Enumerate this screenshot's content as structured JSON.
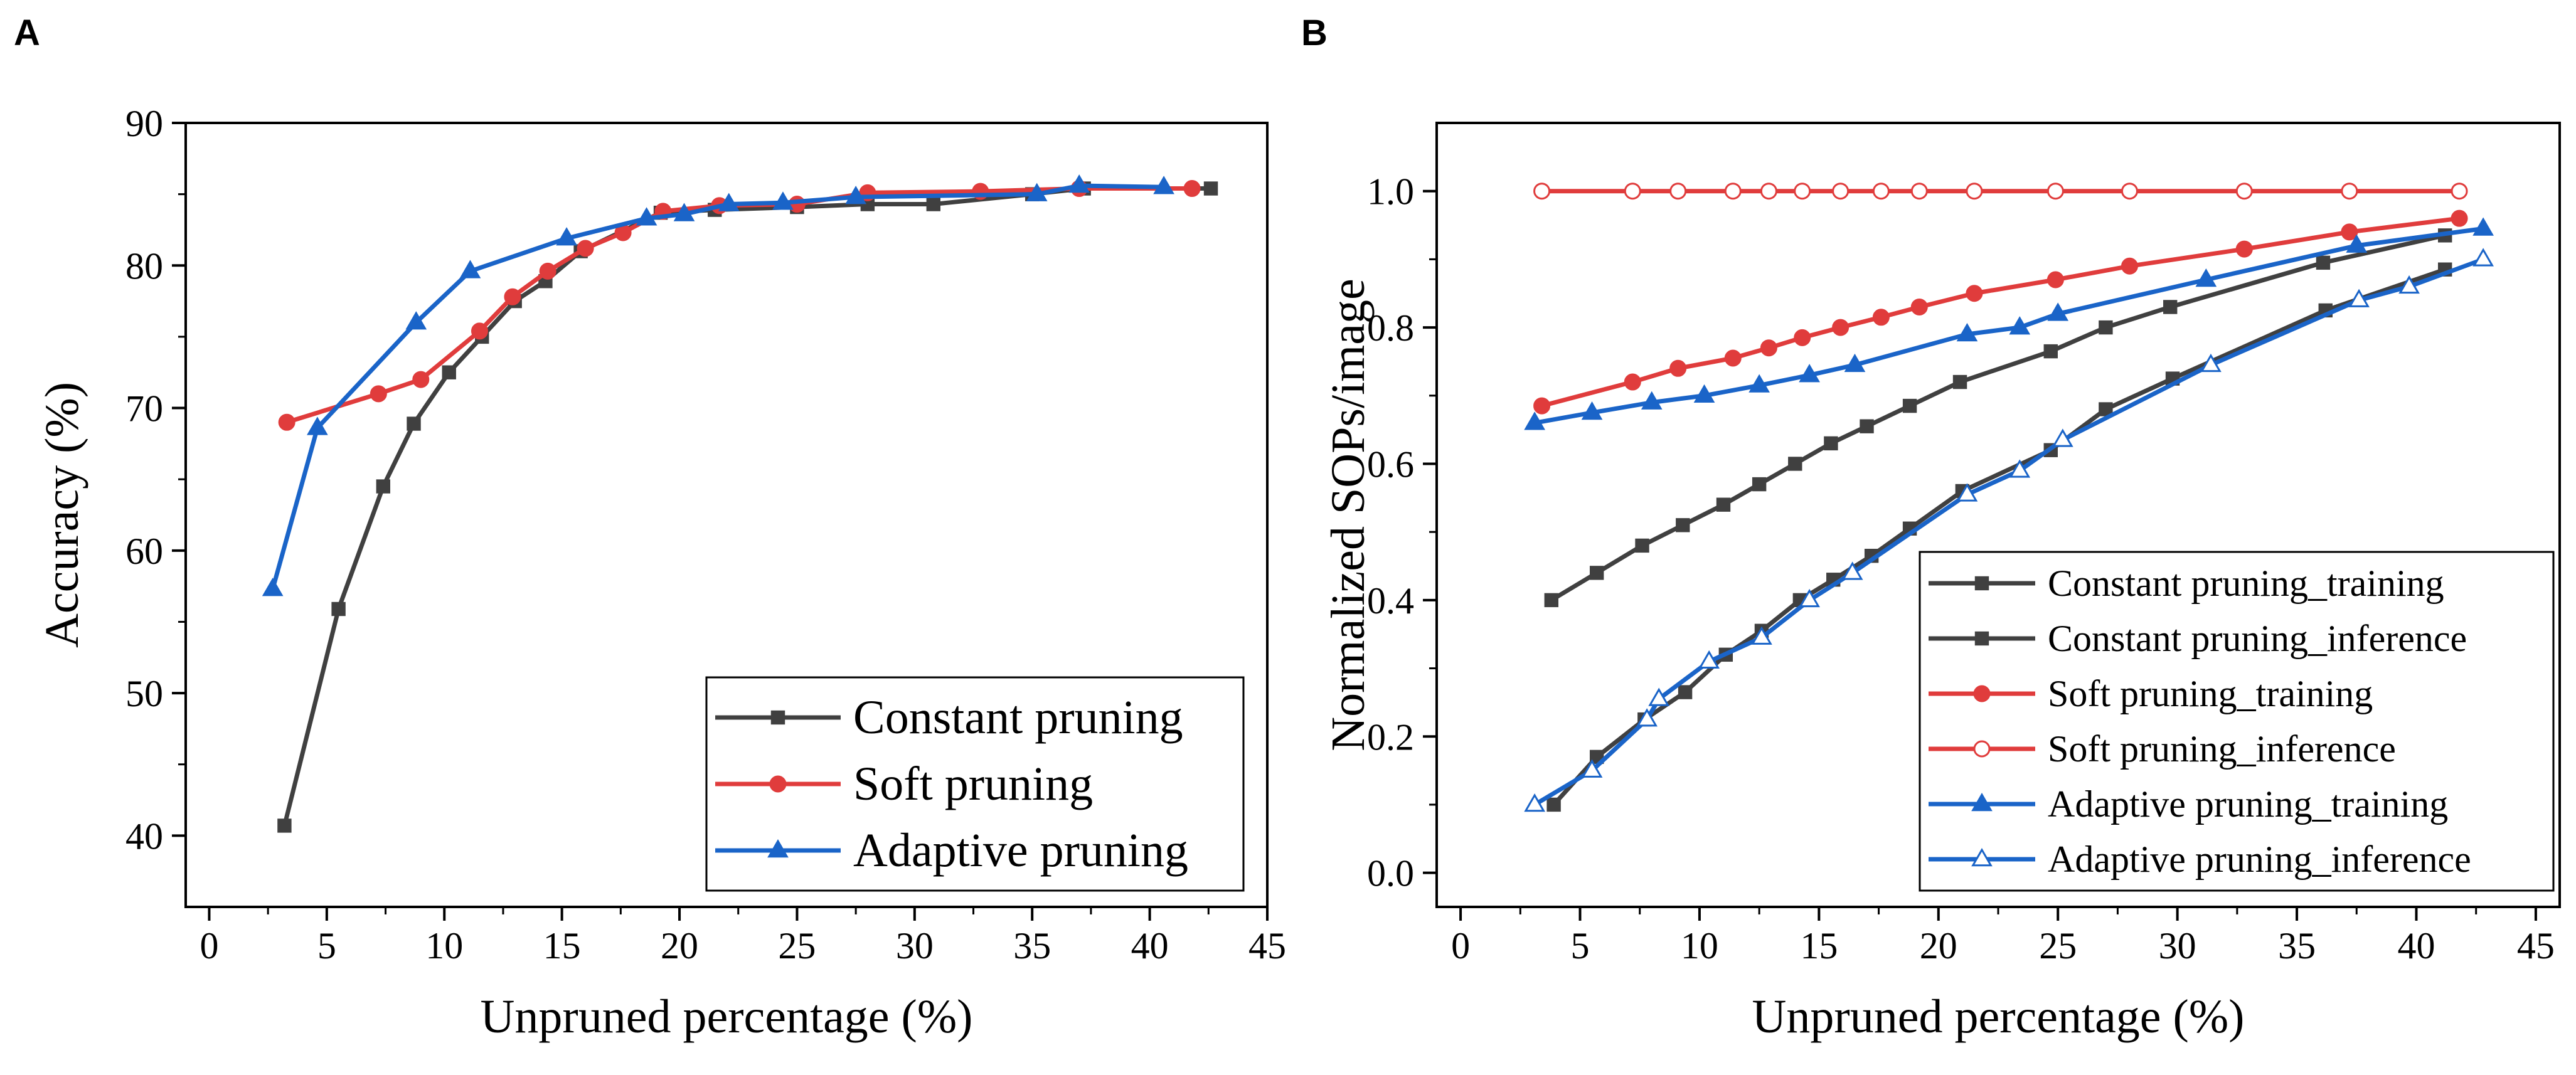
{
  "chart_data": [
    {
      "panel": "A",
      "type": "line",
      "title": "",
      "xlabel": "Unpruned percentage (%)",
      "ylabel": "Accuracy (%)",
      "xlim": [
        -1,
        45
      ],
      "ylim": [
        35,
        90
      ],
      "xticks": [
        0,
        5,
        10,
        15,
        20,
        25,
        30,
        35,
        40,
        45
      ],
      "yticks": [
        40,
        50,
        60,
        70,
        80,
        90
      ],
      "legend_position": "bottom-right",
      "grid": false,
      "series": [
        {
          "name": "Constant pruning",
          "color": "#404040",
          "marker": "square",
          "x": [
            3.2,
            5.5,
            7.4,
            8.7,
            10.2,
            11.6,
            13.0,
            14.3,
            15.8,
            19.2,
            21.5,
            25.0,
            28.0,
            30.8,
            35.0,
            37.2,
            42.6
          ],
          "y": [
            40.7,
            55.9,
            64.5,
            68.9,
            72.5,
            75.0,
            77.5,
            78.9,
            81.0,
            83.7,
            83.9,
            84.1,
            84.3,
            84.3,
            85.0,
            85.4,
            85.4
          ]
        },
        {
          "name": "Soft pruning",
          "color": "#e03c3c",
          "marker": "circle",
          "x": [
            3.3,
            7.2,
            9.0,
            11.5,
            12.9,
            14.4,
            16.0,
            17.6,
            19.3,
            21.7,
            25.0,
            28.0,
            32.8,
            37.0,
            41.8
          ],
          "y": [
            69.0,
            71.0,
            72.0,
            75.4,
            77.8,
            79.6,
            81.2,
            82.3,
            83.8,
            84.2,
            84.3,
            85.1,
            85.2,
            85.4,
            85.4
          ]
        },
        {
          "name": "Adaptive pruning",
          "color": "#1a64c8",
          "marker": "triangle",
          "x": [
            2.7,
            4.6,
            8.8,
            11.1,
            15.2,
            18.6,
            20.2,
            22.1,
            24.4,
            27.5,
            35.2,
            37.0,
            40.6
          ],
          "y": [
            57.3,
            68.6,
            76.0,
            79.6,
            81.9,
            83.3,
            83.6,
            84.3,
            84.4,
            84.8,
            85.0,
            85.6,
            85.5
          ]
        }
      ]
    },
    {
      "panel": "B",
      "type": "line",
      "title": "",
      "xlabel": "Unpruned percentage (%)",
      "ylabel": "Normalized SOPs/image",
      "xlim": [
        -1,
        46
      ],
      "ylim": [
        -0.05,
        1.1
      ],
      "xticks": [
        0,
        5,
        10,
        15,
        20,
        25,
        30,
        35,
        40,
        45
      ],
      "yticks": [
        0.0,
        0.2,
        0.4,
        0.6,
        0.8,
        1.0
      ],
      "ytick_labels": [
        "0.0",
        "0.2",
        "0.4",
        "0.6",
        "0.8",
        "1.0"
      ],
      "legend_position": "bottom-right",
      "grid": false,
      "series": [
        {
          "name": "Constant pruning_training",
          "color": "#404040",
          "marker": "square",
          "x": [
            3.8,
            5.7,
            7.6,
            9.3,
            11.0,
            12.5,
            14.0,
            15.5,
            17.0,
            18.8,
            20.9,
            24.7,
            27.0,
            29.7,
            36.1,
            41.2
          ],
          "y": [
            0.4,
            0.44,
            0.48,
            0.51,
            0.54,
            0.57,
            0.6,
            0.63,
            0.655,
            0.685,
            0.72,
            0.765,
            0.8,
            0.83,
            0.895,
            0.935
          ]
        },
        {
          "name": "Constant pruning_inference",
          "color": "#404040",
          "marker": "square",
          "x": [
            3.9,
            5.7,
            7.7,
            9.4,
            11.1,
            12.6,
            14.2,
            15.6,
            17.2,
            18.8,
            21.0,
            24.7,
            27.0,
            29.8,
            36.2,
            41.2
          ],
          "y": [
            0.1,
            0.17,
            0.225,
            0.265,
            0.32,
            0.355,
            0.4,
            0.43,
            0.465,
            0.505,
            0.56,
            0.62,
            0.68,
            0.725,
            0.825,
            0.885
          ]
        },
        {
          "name": "Soft pruning_training",
          "color": "#e03c3c",
          "marker": "circle",
          "x": [
            3.4,
            7.2,
            9.1,
            11.4,
            12.9,
            14.3,
            15.9,
            17.6,
            19.2,
            21.5,
            24.9,
            28.0,
            32.8,
            37.2,
            41.8
          ],
          "y": [
            0.685,
            0.72,
            0.74,
            0.755,
            0.77,
            0.785,
            0.8,
            0.815,
            0.83,
            0.85,
            0.87,
            0.89,
            0.915,
            0.94,
            0.96
          ]
        },
        {
          "name": "Soft pruning_inference",
          "color": "#e03c3c",
          "marker": "open-circle",
          "x": [
            3.4,
            7.2,
            9.1,
            11.4,
            12.9,
            14.3,
            15.9,
            17.6,
            19.2,
            21.5,
            24.9,
            28.0,
            32.8,
            37.2,
            41.8
          ],
          "y": [
            1.0,
            1.0,
            1.0,
            1.0,
            1.0,
            1.0,
            1.0,
            1.0,
            1.0,
            1.0,
            1.0,
            1.0,
            1.0,
            1.0,
            1.0
          ]
        },
        {
          "name": "Adaptive pruning_training",
          "color": "#1a64c8",
          "marker": "triangle",
          "x": [
            3.1,
            5.5,
            8.0,
            10.2,
            12.5,
            14.6,
            16.5,
            21.2,
            23.4,
            25.0,
            31.2,
            37.5,
            42.8
          ],
          "y": [
            0.66,
            0.675,
            0.69,
            0.7,
            0.715,
            0.73,
            0.745,
            0.79,
            0.8,
            0.82,
            0.87,
            0.92,
            0.945
          ]
        },
        {
          "name": "Adaptive pruning_inference",
          "color": "#1a64c8",
          "marker": "open-triangle",
          "x": [
            3.1,
            5.5,
            7.8,
            8.3,
            10.4,
            12.6,
            14.6,
            16.4,
            21.2,
            23.4,
            25.2,
            31.4,
            37.6,
            39.7,
            42.8
          ],
          "y": [
            0.1,
            0.15,
            0.225,
            0.255,
            0.31,
            0.345,
            0.4,
            0.44,
            0.555,
            0.59,
            0.635,
            0.745,
            0.84,
            0.86,
            0.9
          ]
        }
      ]
    }
  ]
}
